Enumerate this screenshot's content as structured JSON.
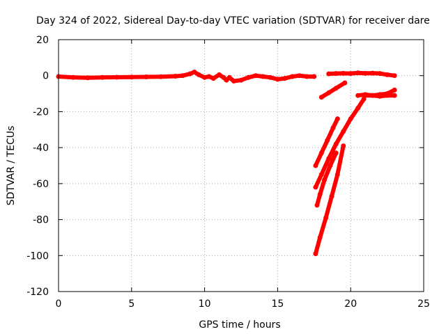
{
  "chart_data": {
    "type": "scatter",
    "title": "Day 324 of 2022, Sidereal Day-to-day VTEC variation (SDTVAR) for receiver dare",
    "xlabel": "GPS time / hours",
    "ylabel": "SDTVAR / TECUs",
    "xlim": [
      0,
      25
    ],
    "ylim": [
      -120,
      20
    ],
    "xticks": [
      0,
      5,
      10,
      15,
      20,
      25
    ],
    "yticks": [
      -120,
      -100,
      -80,
      -60,
      -40,
      -20,
      0,
      20
    ],
    "grid": true,
    "color": "#ff0000",
    "series": [
      {
        "name": "main-trace",
        "x": [
          0,
          1,
          2,
          3,
          4,
          5,
          6,
          7,
          8,
          8.5,
          9,
          9.3,
          9.6,
          10,
          10.3,
          10.6,
          11,
          11.3,
          11.5,
          11.7,
          12,
          12.5,
          13,
          13.5,
          14,
          14.5,
          15,
          15.5,
          16,
          16.5,
          17,
          17.5
        ],
        "y": [
          -0.5,
          -1,
          -1.2,
          -1,
          -0.9,
          -0.8,
          -0.7,
          -0.6,
          -0.3,
          0,
          1,
          2,
          0.5,
          -1,
          -0.5,
          -1.5,
          0.5,
          -1,
          -2.5,
          -1,
          -3,
          -2.5,
          -1,
          0,
          -0.5,
          -1,
          -2,
          -1.5,
          -0.5,
          0,
          -0.5,
          -0.5
        ]
      },
      {
        "name": "upper-right-trace",
        "x": [
          18.5,
          19,
          19.5,
          20,
          20.5,
          21,
          21.5,
          22,
          22.5,
          23
        ],
        "y": [
          1,
          1.2,
          1.3,
          1.2,
          1.5,
          1.3,
          1.4,
          1.2,
          0.5,
          0
        ]
      },
      {
        "name": "short-rising-trace",
        "x": [
          18.0,
          18.5,
          19.0,
          19.6
        ],
        "y": [
          -12,
          -9.5,
          -7,
          -4
        ]
      },
      {
        "name": "flat-right-trace",
        "x": [
          20.5,
          21,
          21.5,
          22,
          22.5,
          23
        ],
        "y": [
          -11,
          -10.5,
          -11,
          -11.5,
          -11,
          -11
        ]
      },
      {
        "name": "diagonal-right-trace",
        "x": [
          21.0,
          21.5,
          22,
          22.5,
          23
        ],
        "y": [
          -11,
          -11,
          -10.5,
          -10,
          -8
        ]
      },
      {
        "name": "steep-trace-a",
        "x": [
          17.6,
          18.0,
          18.4,
          18.8,
          19.1
        ],
        "y": [
          -50,
          -43,
          -36,
          -29,
          -24
        ]
      },
      {
        "name": "steep-trace-b",
        "x": [
          17.6,
          18.0,
          18.5,
          19.0,
          19.5,
          20.0,
          20.5,
          20.9
        ],
        "y": [
          -62,
          -55,
          -46,
          -38,
          -31,
          -24,
          -18,
          -13
        ]
      },
      {
        "name": "steep-trace-c",
        "x": [
          17.7,
          17.9,
          18.2,
          18.6,
          19.0
        ],
        "y": [
          -72,
          -66,
          -58,
          -50,
          -43
        ]
      },
      {
        "name": "steep-trace-d",
        "x": [
          17.6,
          17.9,
          18.3,
          18.7,
          19.1,
          19.5
        ],
        "y": [
          -99,
          -90,
          -79,
          -67,
          -55,
          -39
        ]
      }
    ]
  }
}
